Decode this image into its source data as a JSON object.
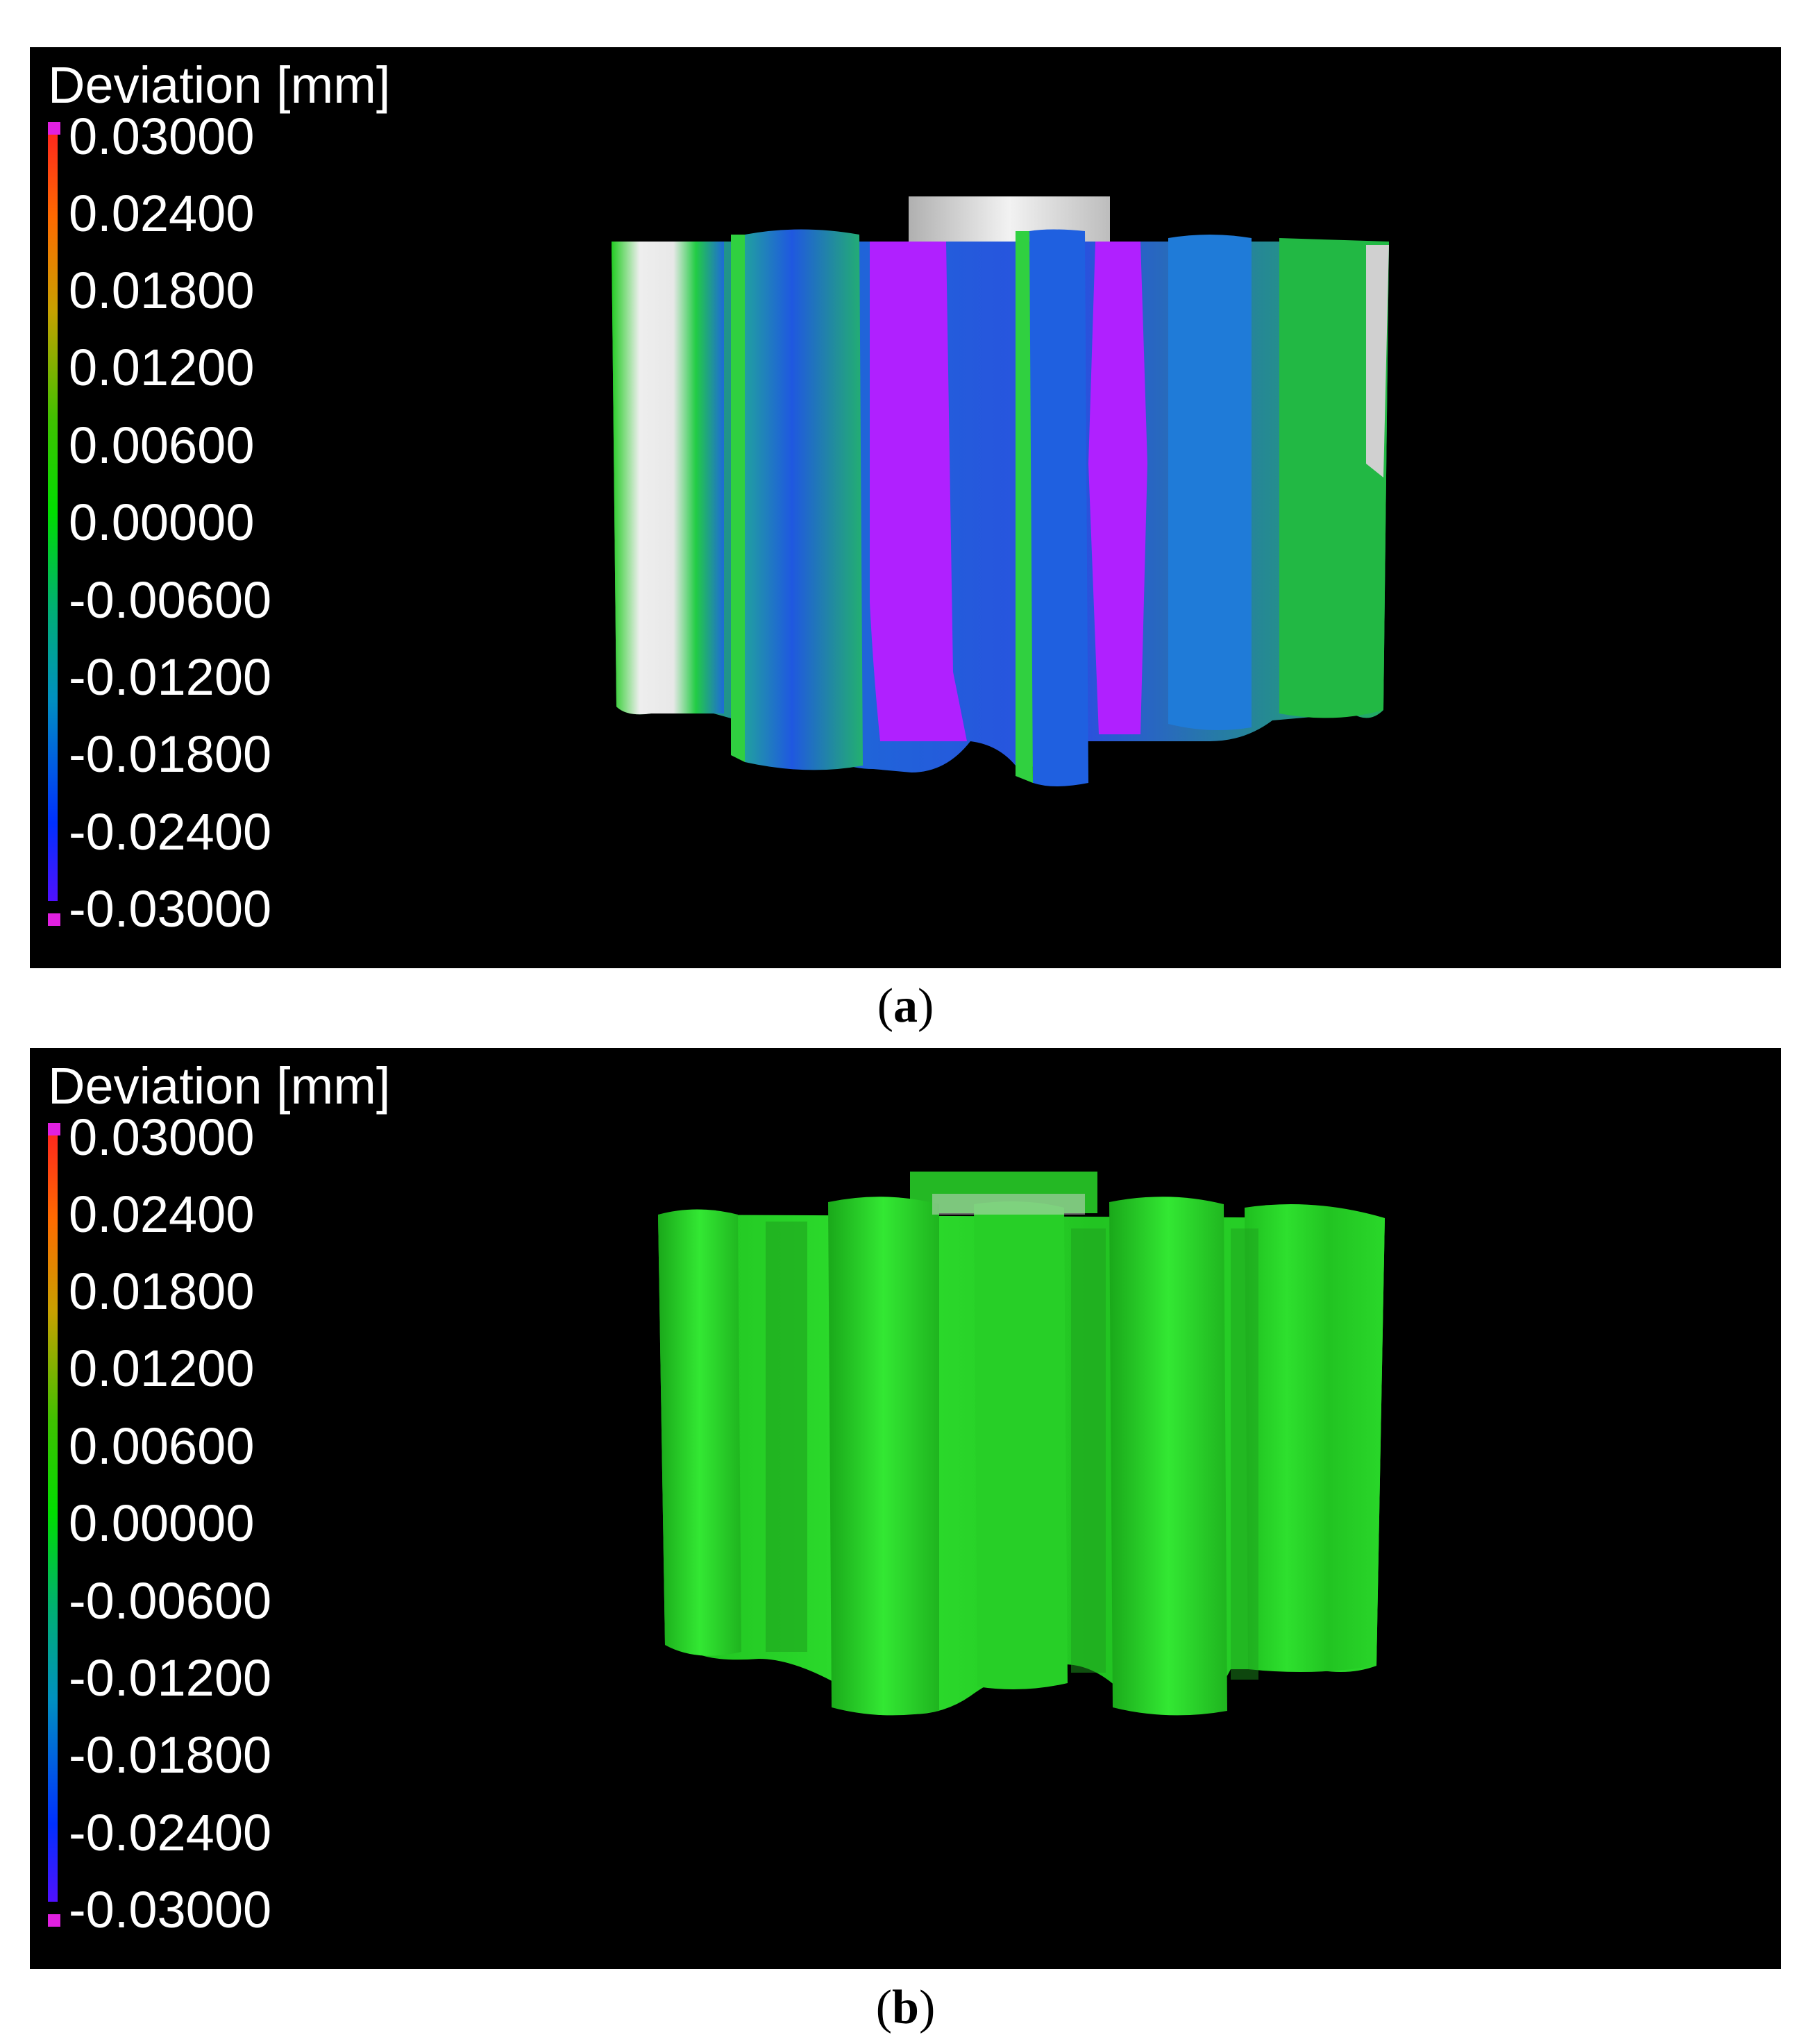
{
  "panels": [
    {
      "legend": {
        "title": "Deviation [mm]",
        "ticks": [
          "0.03000",
          "0.02400",
          "0.01800",
          "0.01200",
          "0.00600",
          "0.00000",
          "-0.00600",
          "-0.01200",
          "-0.01800",
          "-0.02400",
          "-0.03000"
        ]
      },
      "caption": {
        "open": "(",
        "letter": "a",
        "close": ")"
      }
    },
    {
      "legend": {
        "title": "Deviation [mm]",
        "ticks": [
          "0.03000",
          "0.02400",
          "0.01800",
          "0.01200",
          "0.00600",
          "0.00000",
          "-0.00600",
          "-0.01200",
          "-0.01800",
          "-0.02400",
          "-0.03000"
        ]
      },
      "caption": {
        "open": "(",
        "letter": "b",
        "close": ")"
      }
    }
  ],
  "colors": {
    "max": "#e020e0",
    "high": "#ff2020",
    "mid": "#00dd00",
    "low": "#0030ff",
    "min": "#a020ff",
    "gear_a_base": "#1f5fd0",
    "gear_b_base": "#22e022",
    "hub": "#d8d8d8"
  }
}
